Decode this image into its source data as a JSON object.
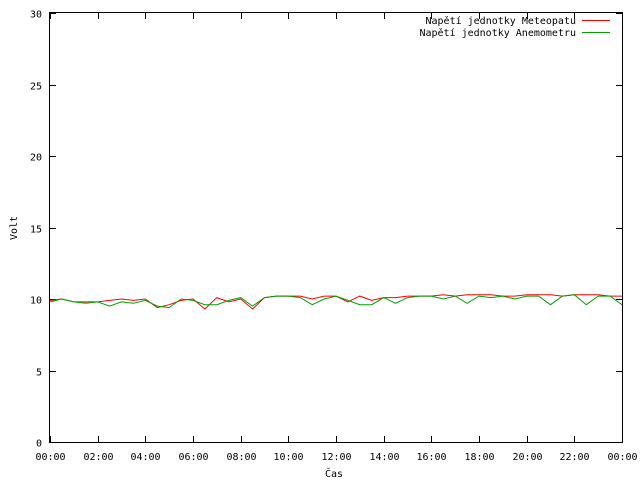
{
  "chart_data": {
    "type": "line",
    "title": "",
    "xlabel": "Čas",
    "ylabel": "Volt",
    "ylim": [
      0,
      30
    ],
    "yticks": [
      0,
      5,
      10,
      15,
      20,
      25,
      30
    ],
    "xlim": [
      "00:00",
      "24:00"
    ],
    "xticks": [
      "00:00",
      "02:00",
      "04:00",
      "06:00",
      "08:00",
      "10:00",
      "12:00",
      "14:00",
      "16:00",
      "18:00",
      "20:00",
      "22:00",
      "00:00"
    ],
    "grid": false,
    "legend": "top-right",
    "x": [
      "00:00",
      "00:30",
      "01:00",
      "01:30",
      "02:00",
      "02:30",
      "03:00",
      "03:30",
      "04:00",
      "04:30",
      "05:00",
      "05:30",
      "06:00",
      "06:30",
      "07:00",
      "07:30",
      "08:00",
      "08:30",
      "09:00",
      "09:30",
      "10:00",
      "10:30",
      "11:00",
      "11:30",
      "12:00",
      "12:30",
      "13:00",
      "13:30",
      "14:00",
      "14:30",
      "15:00",
      "15:30",
      "16:00",
      "16:30",
      "17:00",
      "17:30",
      "18:00",
      "18:30",
      "19:00",
      "19:30",
      "20:00",
      "20:30",
      "21:00",
      "21:30",
      "22:00",
      "22:30",
      "23:00",
      "23:30",
      "24:00"
    ],
    "series": [
      {
        "name": "Napětí jednotky Meteopatu",
        "color": "#ff0000",
        "values": [
          9.9,
          10.0,
          9.8,
          9.8,
          9.8,
          9.9,
          10.0,
          9.9,
          10.0,
          9.4,
          9.6,
          9.9,
          10.0,
          9.3,
          10.1,
          9.8,
          10.0,
          9.3,
          10.1,
          10.2,
          10.2,
          10.2,
          10.0,
          10.2,
          10.2,
          9.8,
          10.2,
          9.9,
          10.1,
          10.1,
          10.2,
          10.2,
          10.2,
          10.3,
          10.2,
          10.3,
          10.3,
          10.3,
          10.2,
          10.2,
          10.3,
          10.3,
          10.3,
          10.2,
          10.3,
          10.3,
          10.3,
          10.2,
          10.2
        ]
      },
      {
        "name": "Napětí jednotky Anemometru",
        "color": "#00a000",
        "values": [
          9.8,
          10.0,
          9.8,
          9.7,
          9.8,
          9.5,
          9.8,
          9.7,
          9.9,
          9.5,
          9.4,
          10.0,
          9.9,
          9.6,
          9.6,
          9.9,
          10.1,
          9.5,
          10.1,
          10.2,
          10.2,
          10.1,
          9.6,
          10.0,
          10.2,
          9.9,
          9.6,
          9.6,
          10.1,
          9.7,
          10.1,
          10.2,
          10.2,
          10.0,
          10.2,
          9.7,
          10.2,
          10.1,
          10.2,
          10.0,
          10.2,
          10.2,
          9.6,
          10.2,
          10.3,
          9.6,
          10.2,
          10.2,
          9.6
        ]
      }
    ]
  }
}
